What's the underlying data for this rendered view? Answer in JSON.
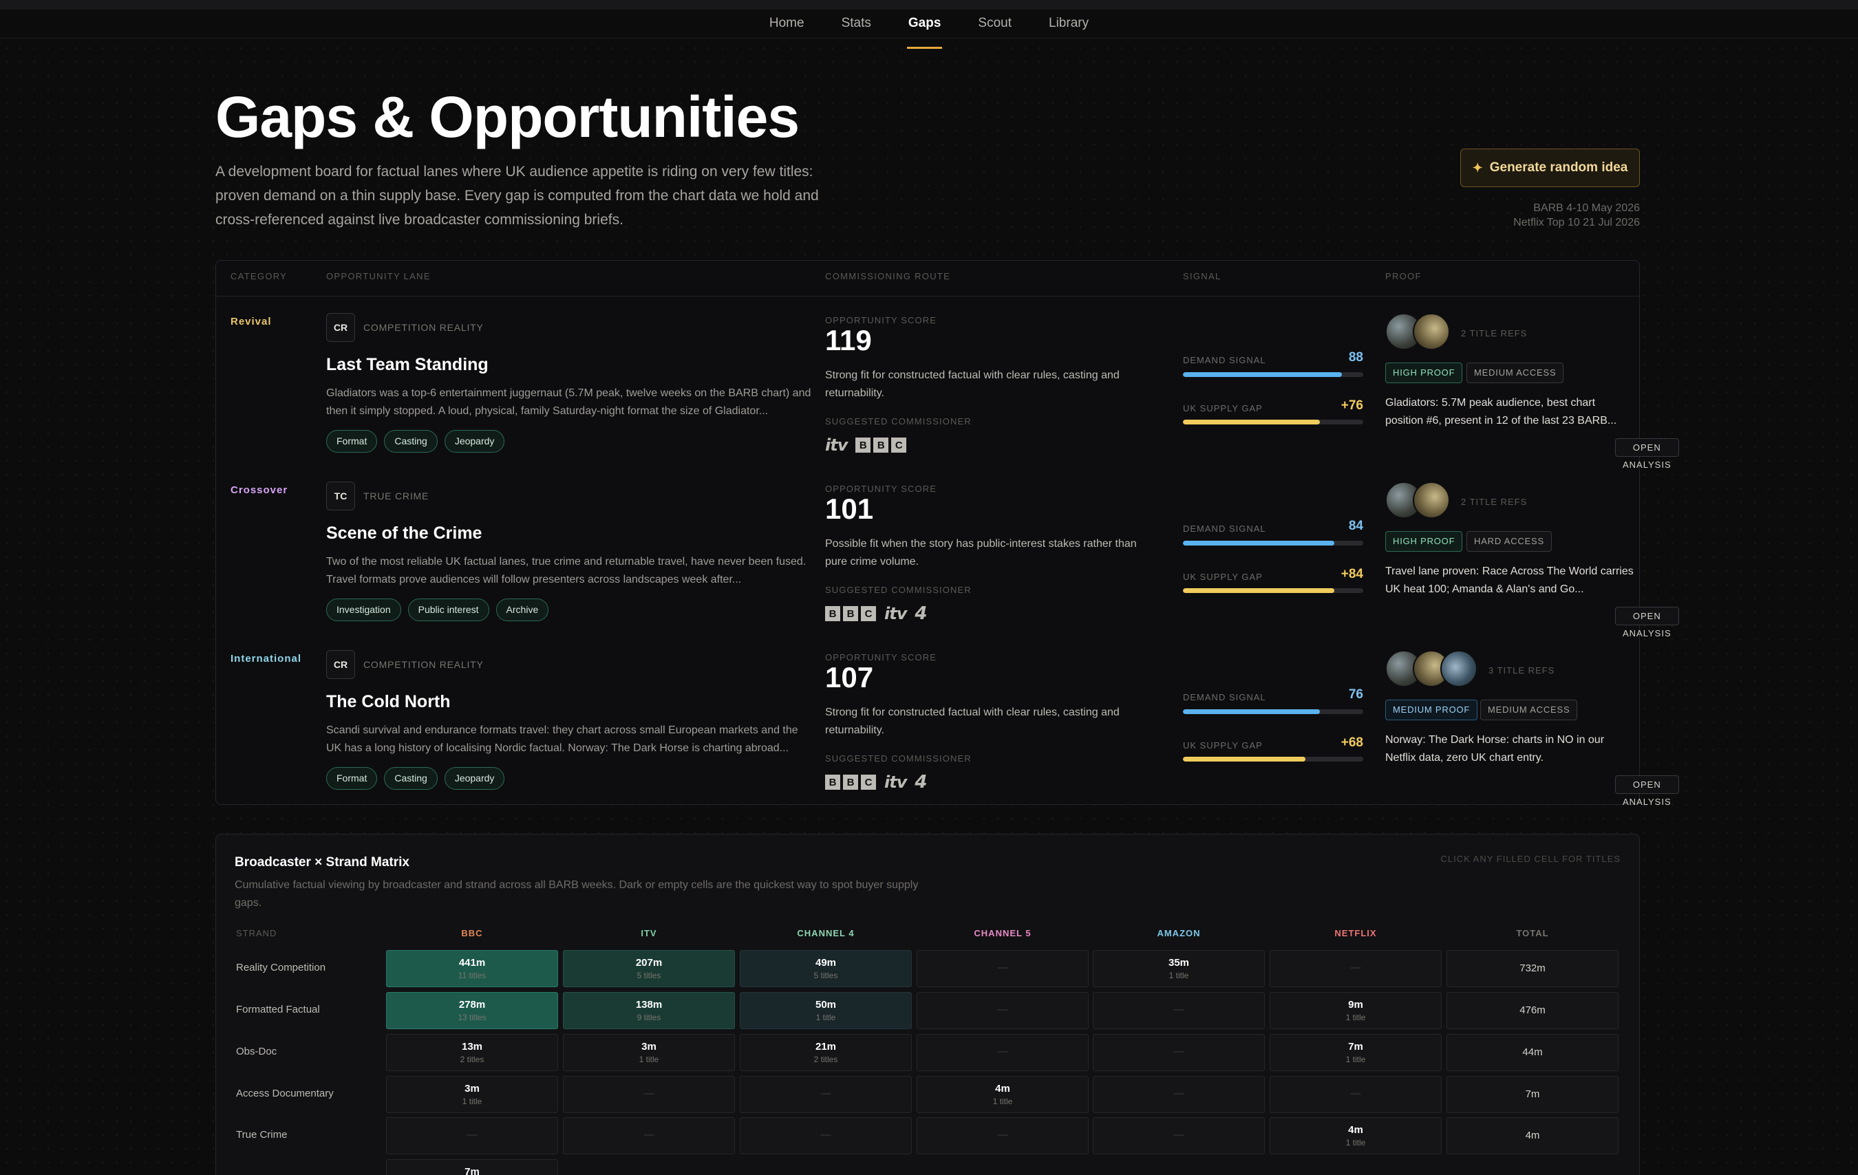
{
  "nav": [
    "Home",
    "Stats",
    "Gaps",
    "Scout",
    "Library"
  ],
  "nav_active": "Gaps",
  "page": {
    "title": "Gaps & Opportunities",
    "intro": "A development board for factual lanes where UK audience appetite is riding on very few titles: proven demand on a thin supply base. Every gap is computed from the chart data we hold and cross-referenced against live broadcaster commissioning briefs.",
    "generate_label": "Generate random idea",
    "source_1": "BARB 4-10 May 2026",
    "source_2": "Netflix Top 10 21 Jul 2026"
  },
  "table": {
    "headers": [
      "Category",
      "Opportunity lane",
      "Commissioning route",
      "Signal",
      "Proof"
    ],
    "labels": {
      "score": "Opportunity score",
      "commissioner": "Suggested commissioner",
      "demand": "Demand signal",
      "supply": "UK supply gap",
      "open": "Open analysis"
    },
    "rows": [
      {
        "category": "Revival",
        "category_color": "#e9c46a",
        "badge": "CR",
        "subcategory": "Competition reality",
        "title": "Last Team Standing",
        "description": "Gladiators was a top-6 entertainment juggernaut (5.7M peak, twelve weeks on the BARB chart) and then it simply stopped. A loud, physical, family Saturday-night format the size of Gladiator...",
        "tags": [
          "Format",
          "Casting",
          "Jeopardy"
        ],
        "score": "119",
        "score_note": "Strong fit for constructed factual with clear rules, casting and returnability.",
        "logos": [
          "itv",
          "bbc"
        ],
        "demand": "88",
        "demand_pct": 88,
        "supply": "+76",
        "supply_pct": 76,
        "avatars": 2,
        "refs": "2 title refs",
        "proof_level": "High proof",
        "proof_class": "proof-high",
        "access": "Medium access",
        "proof": "Gladiators: 5.7M peak audience, best chart position #6, present in 12 of the last 23 BARB..."
      },
      {
        "category": "Crossover",
        "category_color": "#d7a3f5",
        "badge": "TC",
        "subcategory": "True crime",
        "title": "Scene of the Crime",
        "description": "Two of the most reliable UK factual lanes, true crime and returnable travel, have never been fused. Travel formats prove audiences will follow presenters across landscapes week after...",
        "tags": [
          "Investigation",
          "Public interest",
          "Archive"
        ],
        "score": "101",
        "score_note": "Possible fit when the story has public-interest stakes rather than pure crime volume.",
        "logos": [
          "bbc",
          "itv",
          "c4"
        ],
        "demand": "84",
        "demand_pct": 84,
        "supply": "+84",
        "supply_pct": 84,
        "avatars": 2,
        "refs": "2 title refs",
        "proof_level": "High proof",
        "proof_class": "proof-high",
        "access": "Hard access",
        "proof": "Travel lane proven: Race Across The World carries UK heat 100; Amanda & Alan's and Go..."
      },
      {
        "category": "International",
        "category_color": "#8fd6ea",
        "badge": "CR",
        "subcategory": "Competition reality",
        "title": "The Cold North",
        "description": "Scandi survival and endurance formats travel: they chart across small European markets and the UK has a long history of localising Nordic factual. Norway: The Dark Horse is charting abroad...",
        "tags": [
          "Format",
          "Casting",
          "Jeopardy"
        ],
        "score": "107",
        "score_note": "Strong fit for constructed factual with clear rules, casting and returnability.",
        "logos": [
          "bbc",
          "itv",
          "c4"
        ],
        "demand": "76",
        "demand_pct": 76,
        "supply": "+68",
        "supply_pct": 68,
        "avatars": 3,
        "refs": "3 title refs",
        "proof_level": "Medium proof",
        "proof_class": "proof-med",
        "access": "Medium access",
        "proof": "Norway: The Dark Horse: charts in NO in our Netflix data, zero UK chart entry."
      }
    ]
  },
  "matrix": {
    "title": "Broadcaster × Strand Matrix",
    "description": "Cumulative factual viewing by broadcaster and strand across all BARB weeks. Dark or empty cells are the quickest way to spot buyer supply gaps.",
    "hint": "Click any filled cell for titles",
    "strand_header": "Strand",
    "columns": [
      {
        "label": "BBC",
        "color": "#e3875a"
      },
      {
        "label": "ITV",
        "color": "#7fd3a6"
      },
      {
        "label": "Channel 4",
        "color": "#8fd6b3"
      },
      {
        "label": "Channel 5",
        "color": "#e98ac7"
      },
      {
        "label": "Amazon",
        "color": "#7cc7ea"
      },
      {
        "label": "Netflix",
        "color": "#ee7474"
      },
      {
        "label": "Total",
        "color": "#77756f"
      }
    ],
    "rows": [
      {
        "strand": "Reality Competition",
        "cells": [
          [
            "441m",
            "11 titles"
          ],
          [
            "207m",
            "5 titles"
          ],
          [
            "49m",
            "5 titles"
          ],
          [
            "—",
            ""
          ],
          [
            "35m",
            "1 title"
          ],
          [
            "—",
            ""
          ]
        ],
        "total": "732m"
      },
      {
        "strand": "Formatted Factual",
        "cells": [
          [
            "278m",
            "13 titles"
          ],
          [
            "138m",
            "9 titles"
          ],
          [
            "50m",
            "1 title"
          ],
          [
            "—",
            ""
          ],
          [
            "—",
            ""
          ],
          [
            "9m",
            "1 title"
          ]
        ],
        "total": "476m"
      },
      {
        "strand": "Obs-Doc",
        "cells": [
          [
            "13m",
            "2 titles"
          ],
          [
            "3m",
            "1 title"
          ],
          [
            "21m",
            "2 titles"
          ],
          [
            "—",
            ""
          ],
          [
            "—",
            ""
          ],
          [
            "7m",
            "1 title"
          ]
        ],
        "total": "44m"
      },
      {
        "strand": "Access Documentary",
        "cells": [
          [
            "3m",
            "1 title"
          ],
          [
            "—",
            ""
          ],
          [
            "—",
            ""
          ],
          [
            "4m",
            "1 title"
          ],
          [
            "—",
            ""
          ],
          [
            "—",
            ""
          ]
        ],
        "total": "7m"
      },
      {
        "strand": "True Crime",
        "cells": [
          [
            "—",
            ""
          ],
          [
            "—",
            ""
          ],
          [
            "—",
            ""
          ],
          [
            "—",
            ""
          ],
          [
            "—",
            ""
          ],
          [
            "4m",
            "1 title"
          ]
        ],
        "total": "4m"
      },
      {
        "strand": "",
        "cells": [
          [
            "7m",
            ""
          ],
          [
            "",
            ""
          ],
          [
            "",
            ""
          ],
          [
            "",
            ""
          ],
          [
            "",
            ""
          ],
          [
            "",
            ""
          ]
        ],
        "total": ""
      }
    ]
  }
}
